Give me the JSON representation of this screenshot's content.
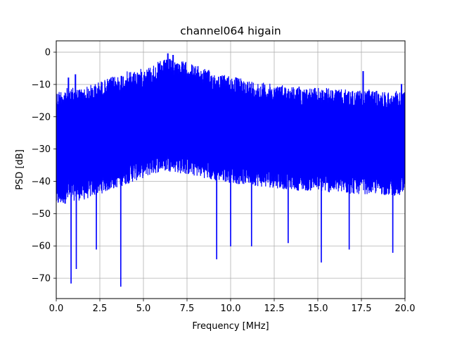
{
  "chart_data": {
    "type": "line",
    "title": "channel064 higain",
    "xlabel": "Frequency [MHz]",
    "ylabel": "PSD [dB]",
    "xlim": [
      0,
      20
    ],
    "ylim": [
      -76.3,
      3.5
    ],
    "xticks": [
      0,
      2.5,
      5,
      7.5,
      10,
      12.5,
      15,
      17.5,
      20
    ],
    "xtick_labels": [
      "0.0",
      "2.5",
      "5.0",
      "7.5",
      "10.0",
      "12.5",
      "15.0",
      "17.5",
      "20.0"
    ],
    "yticks": [
      0,
      -10,
      -20,
      -30,
      -40,
      -50,
      -60,
      -70
    ],
    "ytick_labels": [
      "0",
      "−10",
      "−20",
      "−30",
      "−40",
      "−50",
      "−60",
      "−70"
    ],
    "grid": true,
    "line_color": "#0000ff",
    "series": [
      {
        "x": [
          0.0,
          0.5,
          1.0,
          1.5,
          2.0,
          2.5,
          3.0,
          3.5,
          4.0,
          4.5,
          5.0,
          5.5,
          6.0,
          6.5,
          7.0,
          7.5,
          8.0,
          8.5,
          9.0,
          9.5,
          10.0,
          10.5,
          11.0,
          11.5,
          12.0,
          12.5,
          13.0,
          13.5,
          14.0,
          14.5,
          15.0,
          15.5,
          16.0,
          16.5,
          17.0,
          17.5,
          18.0,
          18.5,
          19.0,
          19.5,
          20.0
        ],
        "upper": [
          -12,
          -11,
          -11,
          -11,
          -10,
          -9,
          -8,
          -7,
          -6,
          -5.5,
          -5,
          -4,
          -2.5,
          -2,
          -2.5,
          -3,
          -4,
          -5,
          -6,
          -7,
          -7,
          -8,
          -8.5,
          -9,
          -9.5,
          -10,
          -10,
          -10.5,
          -10.5,
          -11,
          -11,
          -11,
          -11.5,
          -11.5,
          -11.5,
          -12,
          -11.5,
          -12,
          -12,
          -12,
          -12
        ],
        "lower": [
          -48,
          -47,
          -46,
          -46,
          -45,
          -44,
          -43,
          -42,
          -41,
          -40,
          -39,
          -38,
          -37,
          -37,
          -37.5,
          -38,
          -38.5,
          -39,
          -40,
          -40,
          -40.5,
          -41,
          -41,
          -41.5,
          -42,
          -42,
          -42.5,
          -42.5,
          -43,
          -43,
          -43,
          -43.5,
          -43.5,
          -44,
          -44,
          -44,
          -44,
          -44,
          -44.5,
          -44.5,
          -45
        ],
        "peaks": [
          [
            0.7,
            -8
          ],
          [
            1.1,
            -7
          ],
          [
            6.4,
            -0.5
          ],
          [
            6.7,
            -1
          ],
          [
            17.6,
            -6
          ],
          [
            19.8,
            -10
          ]
        ],
        "dips": [
          [
            0.85,
            -71.5
          ],
          [
            1.15,
            -67
          ],
          [
            3.7,
            -72.5
          ],
          [
            2.3,
            -61
          ],
          [
            9.2,
            -64
          ],
          [
            10.0,
            -60
          ],
          [
            11.2,
            -60
          ],
          [
            13.3,
            -59
          ],
          [
            15.2,
            -65
          ],
          [
            16.8,
            -61
          ],
          [
            19.3,
            -62
          ]
        ]
      }
    ]
  }
}
